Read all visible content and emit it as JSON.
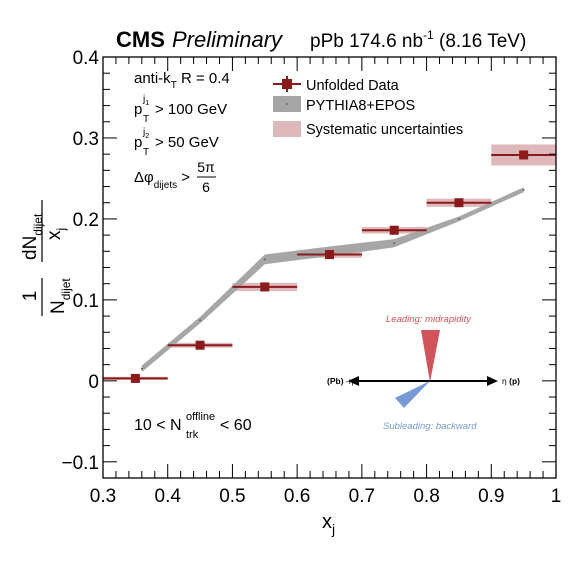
{
  "header": {
    "cms": "CMS",
    "preliminary": "Preliminary",
    "lumi_prefix": "pPb 174.6 nb",
    "lumi_exp": "-1",
    "lumi_suffix": " (8.16 TeV)"
  },
  "chart_data": {
    "type": "scatter",
    "xlabel": "x",
    "xlabel_sub": "j",
    "ylabel": {
      "num_top": "dN",
      "num_sub": "dijet",
      "den": "x",
      "den_sub": "j",
      "pre_num": "1",
      "pre_den": "N",
      "pre_den_sub": "dijet"
    },
    "xlim": [
      0.3,
      1.0
    ],
    "ylim": [
      -0.12,
      0.4
    ],
    "x_ticks": [
      "0.3",
      "0.4",
      "0.5",
      "0.6",
      "0.7",
      "0.8",
      "0.9",
      "1"
    ],
    "x_tick_values": [
      0.3,
      0.4,
      0.5,
      0.6,
      0.7,
      0.8,
      0.9,
      1.0
    ],
    "y_ticks": [
      "−0.1",
      "0",
      "0.1",
      "0.2",
      "0.3",
      "0.4"
    ],
    "y_tick_values": [
      -0.1,
      0,
      0.1,
      0.2,
      0.3,
      0.4
    ],
    "grid": false,
    "legend": [
      {
        "label": "Unfolded Data",
        "style": "marker",
        "color": "#8b1a1a"
      },
      {
        "label": "PYTHIA8+EPOS",
        "style": "band",
        "color": "#a6a6a6"
      },
      {
        "label": "Systematic uncertainties",
        "style": "box",
        "color": "#deb8bb"
      }
    ],
    "series": [
      {
        "name": "Unfolded Data",
        "x": [
          0.35,
          0.45,
          0.55,
          0.65,
          0.75,
          0.85,
          0.95
        ],
        "y": [
          0.003,
          0.044,
          0.116,
          0.156,
          0.186,
          0.22,
          0.279
        ],
        "xerr": [
          0.05,
          0.05,
          0.05,
          0.05,
          0.05,
          0.05,
          0.05
        ],
        "syst": [
          0.002,
          0.003,
          0.005,
          0.004,
          0.004,
          0.005,
          0.013
        ],
        "color": "#8b1a1a"
      },
      {
        "name": "PYTHIA8+EPOS",
        "x": [
          0.36,
          0.45,
          0.55,
          0.65,
          0.75,
          0.85,
          0.95
        ],
        "y": [
          0.015,
          0.075,
          0.15,
          0.16,
          0.17,
          0.2,
          0.236
        ],
        "band": [
          0.004,
          0.004,
          0.006,
          0.006,
          0.005,
          0.003,
          0.003
        ],
        "color": "#a6a6a6"
      }
    ],
    "annotations": {
      "algo": "anti-k",
      "algo_sub": "T",
      "algo_rest": " R = 0.4",
      "pt1": "> 100 GeV",
      "pt2": "> 50 GeV",
      "p_letter": "p",
      "p_sub": "T",
      "j1": "j",
      "j1_sub": "1",
      "j2": "j",
      "j2_sub": "2",
      "dphi": "Δφ",
      "dphi_sub": "dijets",
      "dphi_gt": " >",
      "frac_num": "5π",
      "frac_den": "6",
      "mult_left": "10 < N",
      "mult_sup": "offline",
      "mult_sub": "trk",
      "mult_right": " < 60",
      "leading": "Leading: midrapidity",
      "subleading": "Subleading: backward",
      "pb_label": "(Pb)",
      "pb_eta": " -η",
      "p_eta": "η",
      "p_label": "(p)"
    },
    "colors": {
      "data": "#8b1a1a",
      "mc_band": "#a6a6a6",
      "syst": "#deb8bb",
      "leading": "#d1545a",
      "subleading": "#7799d6"
    }
  }
}
